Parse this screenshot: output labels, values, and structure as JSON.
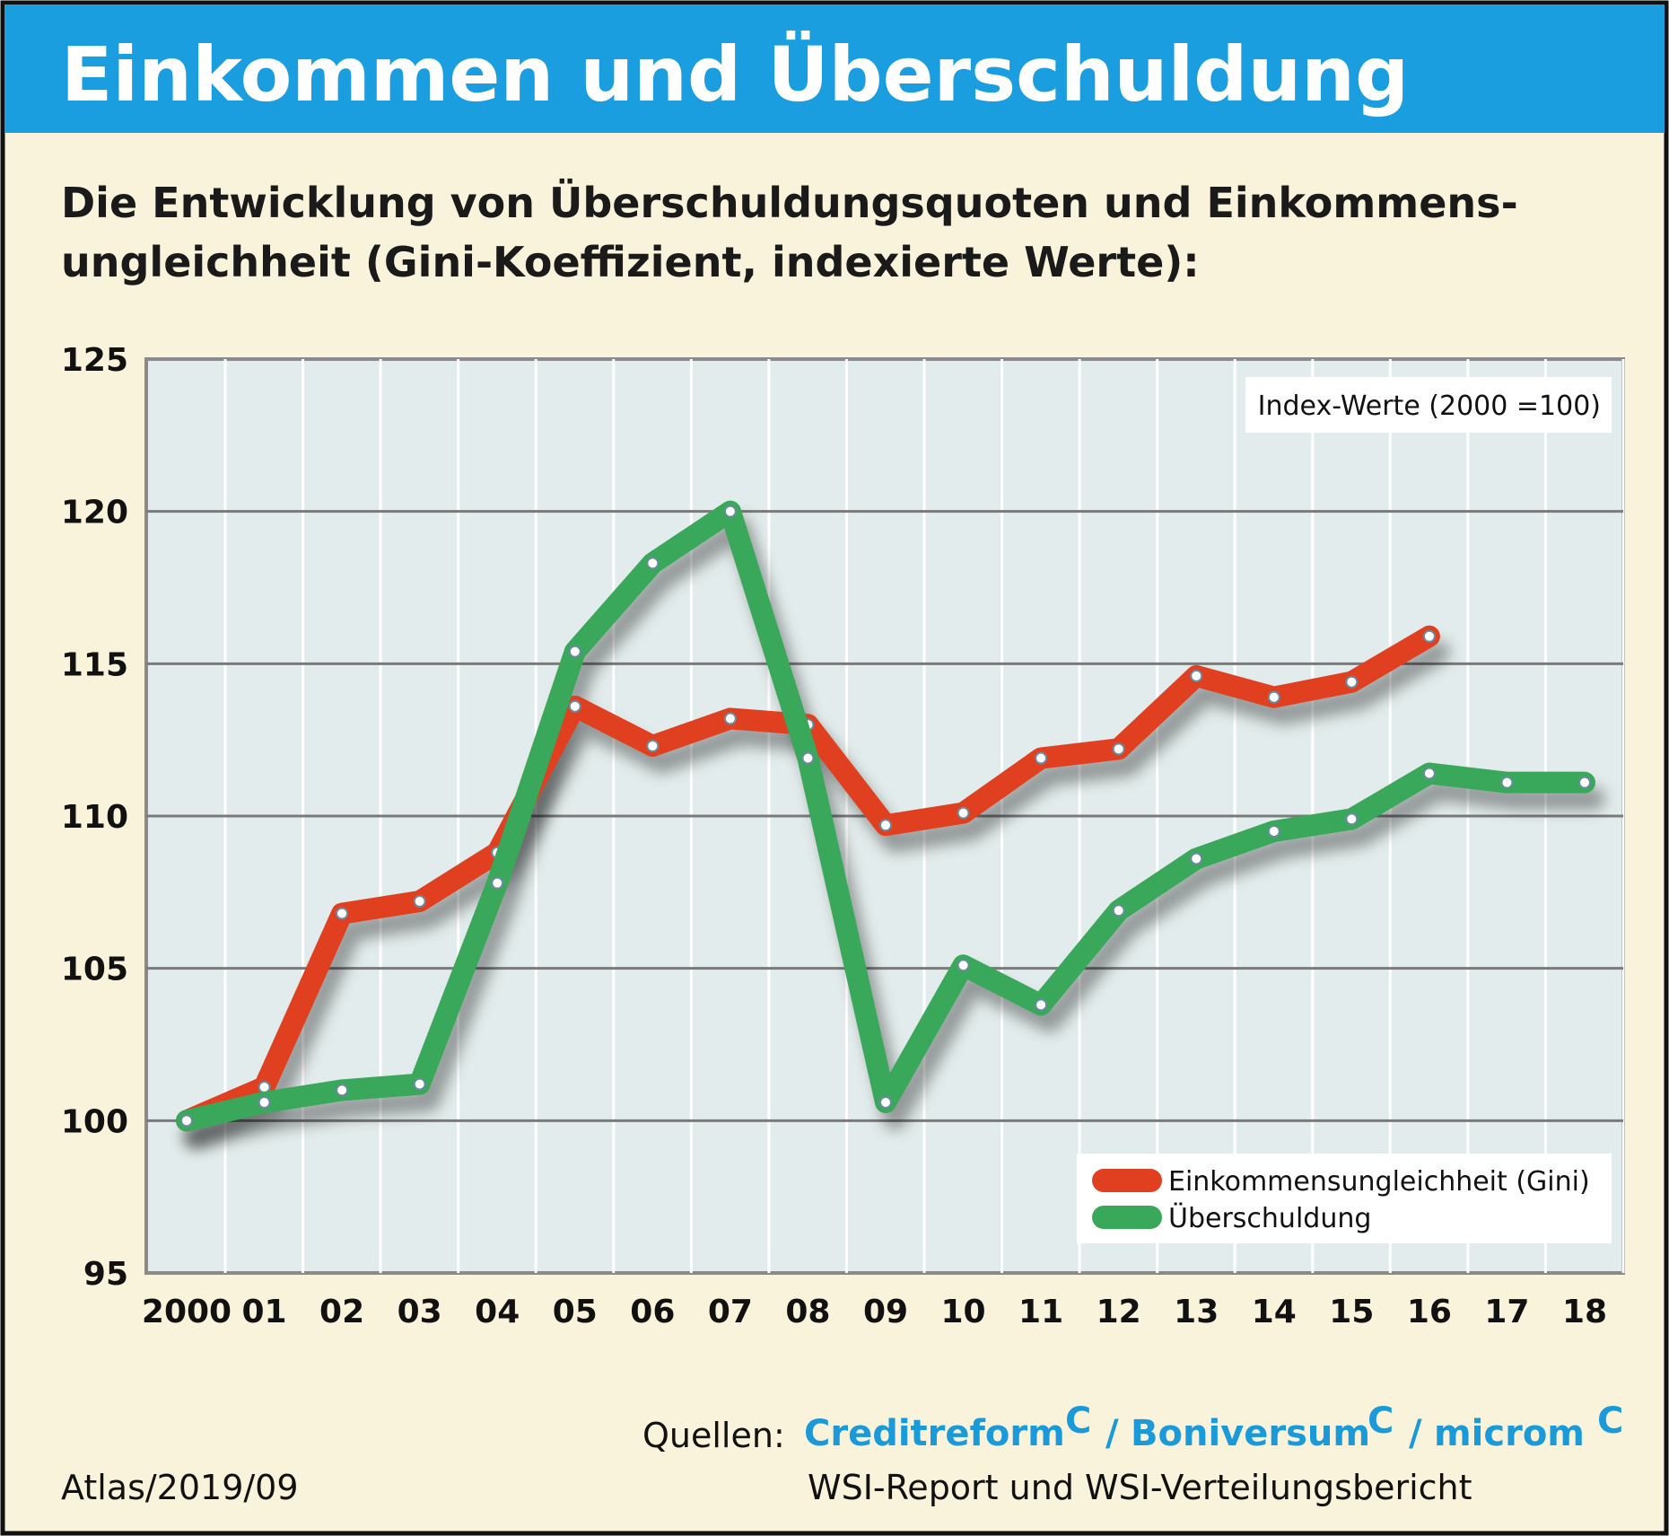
{
  "title": "Einkommen und Überschuldung",
  "subtitle_line1": "Die Entwicklung von Überschuldungsquoten und Einkommens-",
  "subtitle_line2": "ungleichheit (Gini-Koeffizient, indexierte Werte):",
  "colors": {
    "header": "#1a9ee0",
    "background": "#faf3dc",
    "plot_bg": "#e3ecec",
    "gini": "#e0401f",
    "debt": "#3aa85a",
    "logo": "#1a9ad9"
  },
  "chart_data": {
    "type": "line",
    "annotation": "Index-Werte (2000 =100)",
    "categories": [
      "2000",
      "01",
      "02",
      "03",
      "04",
      "05",
      "06",
      "07",
      "08",
      "09",
      "10",
      "11",
      "12",
      "13",
      "14",
      "15",
      "16",
      "17",
      "18"
    ],
    "ylim": [
      95,
      125
    ],
    "yticks": [
      "95",
      "100",
      "105",
      "110",
      "115",
      "120",
      "125"
    ],
    "grid": true,
    "legend_placement": "bottom-right",
    "series": [
      {
        "name": "Einkommensungleichheit (Gini)",
        "color": "#e0401f",
        "values": [
          100,
          101.1,
          106.8,
          107.2,
          108.8,
          113.6,
          112.3,
          113.2,
          113.0,
          109.7,
          110.1,
          111.9,
          112.2,
          114.6,
          113.9,
          114.4,
          115.9,
          null,
          null
        ]
      },
      {
        "name": "Überschuldung",
        "color": "#3aa85a",
        "values": [
          100,
          100.6,
          101.0,
          101.2,
          107.8,
          115.4,
          118.3,
          120.0,
          111.9,
          100.6,
          105.1,
          103.8,
          106.9,
          108.6,
          109.5,
          109.9,
          111.4,
          111.1,
          111.1
        ]
      }
    ]
  },
  "footer": {
    "credit": "Atlas/2019/09",
    "sources_label": "Quellen:",
    "logos": [
      "Creditreform",
      "Boniversum",
      "microm"
    ],
    "separator": "/",
    "sources_line2": "WSI-Report und WSI-Verteilungsbericht"
  }
}
